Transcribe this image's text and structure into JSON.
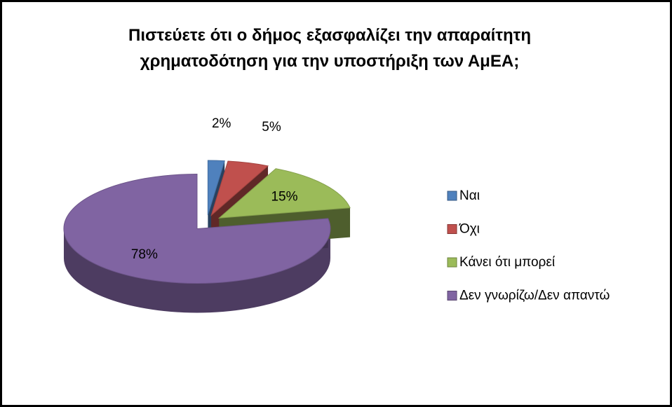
{
  "chart_data": {
    "type": "pie3d",
    "title": "Πιστεύετε ότι ο δήμος εξασφαλίζει την απαραίτητη χρηματοδότηση για την υποστήριξη των ΑμΕΑ;",
    "categories": [
      "Ναι",
      "Όχι",
      "Κάνει ότι μπορεί",
      "Δεν γνωρίζω/Δεν απαντώ"
    ],
    "values": [
      2,
      5,
      15,
      78
    ],
    "value_labels": [
      "2%",
      "5%",
      "15%",
      "78%"
    ],
    "colors": [
      "#4f81bd",
      "#c0504d",
      "#9bbb59",
      "#8064a2"
    ],
    "legend": "right"
  }
}
